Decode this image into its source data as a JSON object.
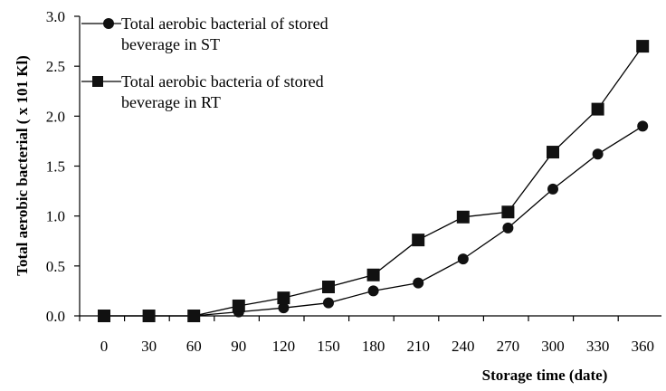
{
  "chart_data": {
    "type": "line",
    "xlabel": "Storage time (date)",
    "ylabel": "Total aerobic bacterial ( x 101 Kl)",
    "x": [
      0,
      30,
      60,
      90,
      120,
      150,
      180,
      210,
      240,
      270,
      300,
      330,
      360
    ],
    "x_tick_labels": [
      "0",
      "30",
      "60",
      "90",
      "120",
      "150",
      "180",
      "210",
      "240",
      "270",
      "300",
      "330",
      "360"
    ],
    "y_tick_labels": [
      "0.0",
      "0.5",
      "1.0",
      "1.5",
      "2.0",
      "2.5",
      "3.0"
    ],
    "ylim": [
      0,
      3.0
    ],
    "grid": false,
    "legend_position": "top-left",
    "series": [
      {
        "name": "Total aerobic bacterial of stored beverage in ST",
        "legend_lines": [
          "Total aerobic bacterial of stored",
          "beverage in ST"
        ],
        "marker": "circle",
        "values": [
          0.0,
          0.0,
          0.0,
          0.04,
          0.08,
          0.13,
          0.25,
          0.33,
          0.57,
          0.88,
          1.27,
          1.62,
          1.9
        ]
      },
      {
        "name": "Total aerobic bacteria of stored beverage in RT",
        "legend_lines": [
          "Total aerobic bacteria of stored",
          "beverage in RT"
        ],
        "marker": "square",
        "values": [
          0.0,
          0.0,
          0.0,
          0.1,
          0.18,
          0.29,
          0.41,
          0.76,
          0.99,
          1.04,
          1.64,
          2.07,
          2.7
        ]
      }
    ],
    "colors": {
      "line": "#000000",
      "marker": "#111111"
    }
  }
}
